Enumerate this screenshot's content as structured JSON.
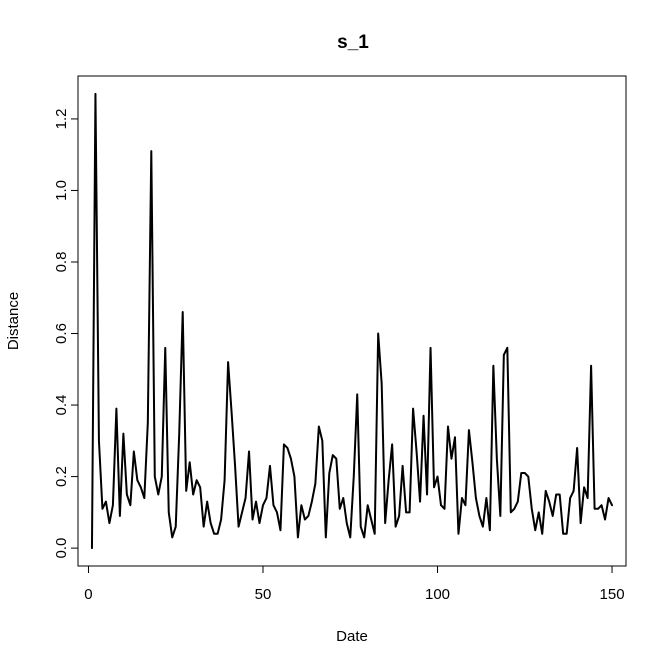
{
  "chart_data": {
    "type": "line",
    "title": "s_1",
    "xlabel": "Date",
    "ylabel": "Distance",
    "xlim": [
      -3,
      154
    ],
    "ylim": [
      -0.05,
      1.32
    ],
    "x_ticks": [
      0,
      50,
      100,
      150
    ],
    "x_tick_labels": [
      "0",
      "50",
      "100",
      "150"
    ],
    "y_ticks": [
      0.0,
      0.2,
      0.4,
      0.6,
      0.8,
      1.0,
      1.2
    ],
    "y_tick_labels": [
      "0.0",
      "0.2",
      "0.4",
      "0.6",
      "0.8",
      "1.0",
      "1.2"
    ],
    "grid": false,
    "series": [
      {
        "color": "#000000",
        "x": [
          1,
          2,
          3,
          4,
          5,
          6,
          7,
          8,
          9,
          10,
          11,
          12,
          13,
          14,
          15,
          16,
          17,
          18,
          19,
          20,
          21,
          22,
          23,
          24,
          25,
          26,
          27,
          28,
          29,
          30,
          31,
          32,
          33,
          34,
          35,
          36,
          37,
          38,
          39,
          40,
          41,
          42,
          43,
          44,
          45,
          46,
          47,
          48,
          49,
          50,
          51,
          52,
          53,
          54,
          55,
          56,
          57,
          58,
          59,
          60,
          61,
          62,
          63,
          64,
          65,
          66,
          67,
          68,
          69,
          70,
          71,
          72,
          73,
          74,
          75,
          76,
          77,
          78,
          79,
          80,
          81,
          82,
          83,
          84,
          85,
          86,
          87,
          88,
          89,
          90,
          91,
          92,
          93,
          94,
          95,
          96,
          97,
          98,
          99,
          100,
          101,
          102,
          103,
          104,
          105,
          106,
          107,
          108,
          109,
          110,
          111,
          112,
          113,
          114,
          115,
          116,
          117,
          118,
          119,
          120,
          121,
          122,
          123,
          124,
          125,
          126,
          127,
          128,
          129,
          130,
          131,
          132,
          133,
          134,
          135,
          136,
          137,
          138,
          139,
          140,
          141,
          142,
          143,
          144,
          145,
          146,
          147,
          148,
          149,
          150
        ],
        "y": [
          0.0,
          1.27,
          0.3,
          0.11,
          0.13,
          0.07,
          0.12,
          0.39,
          0.09,
          0.32,
          0.15,
          0.12,
          0.27,
          0.19,
          0.17,
          0.14,
          0.35,
          1.11,
          0.2,
          0.15,
          0.2,
          0.56,
          0.1,
          0.03,
          0.06,
          0.32,
          0.66,
          0.16,
          0.24,
          0.15,
          0.19,
          0.17,
          0.06,
          0.13,
          0.07,
          0.04,
          0.04,
          0.08,
          0.19,
          0.52,
          0.38,
          0.23,
          0.06,
          0.1,
          0.14,
          0.27,
          0.08,
          0.13,
          0.07,
          0.12,
          0.14,
          0.23,
          0.12,
          0.1,
          0.05,
          0.29,
          0.28,
          0.25,
          0.2,
          0.03,
          0.12,
          0.08,
          0.09,
          0.13,
          0.18,
          0.34,
          0.3,
          0.03,
          0.21,
          0.26,
          0.25,
          0.11,
          0.14,
          0.07,
          0.03,
          0.2,
          0.43,
          0.06,
          0.03,
          0.12,
          0.08,
          0.04,
          0.6,
          0.46,
          0.07,
          0.19,
          0.29,
          0.06,
          0.09,
          0.23,
          0.1,
          0.1,
          0.39,
          0.27,
          0.13,
          0.37,
          0.15,
          0.56,
          0.17,
          0.2,
          0.12,
          0.11,
          0.34,
          0.25,
          0.31,
          0.04,
          0.14,
          0.12,
          0.33,
          0.24,
          0.14,
          0.09,
          0.06,
          0.14,
          0.05,
          0.51,
          0.25,
          0.09,
          0.54,
          0.56,
          0.1,
          0.11,
          0.13,
          0.21,
          0.21,
          0.2,
          0.11,
          0.05,
          0.1,
          0.04,
          0.16,
          0.13,
          0.09,
          0.15,
          0.15,
          0.04,
          0.04,
          0.14,
          0.16,
          0.28,
          0.07,
          0.17,
          0.14,
          0.51,
          0.11,
          0.11,
          0.12,
          0.08,
          0.14,
          0.12
        ]
      }
    ]
  }
}
